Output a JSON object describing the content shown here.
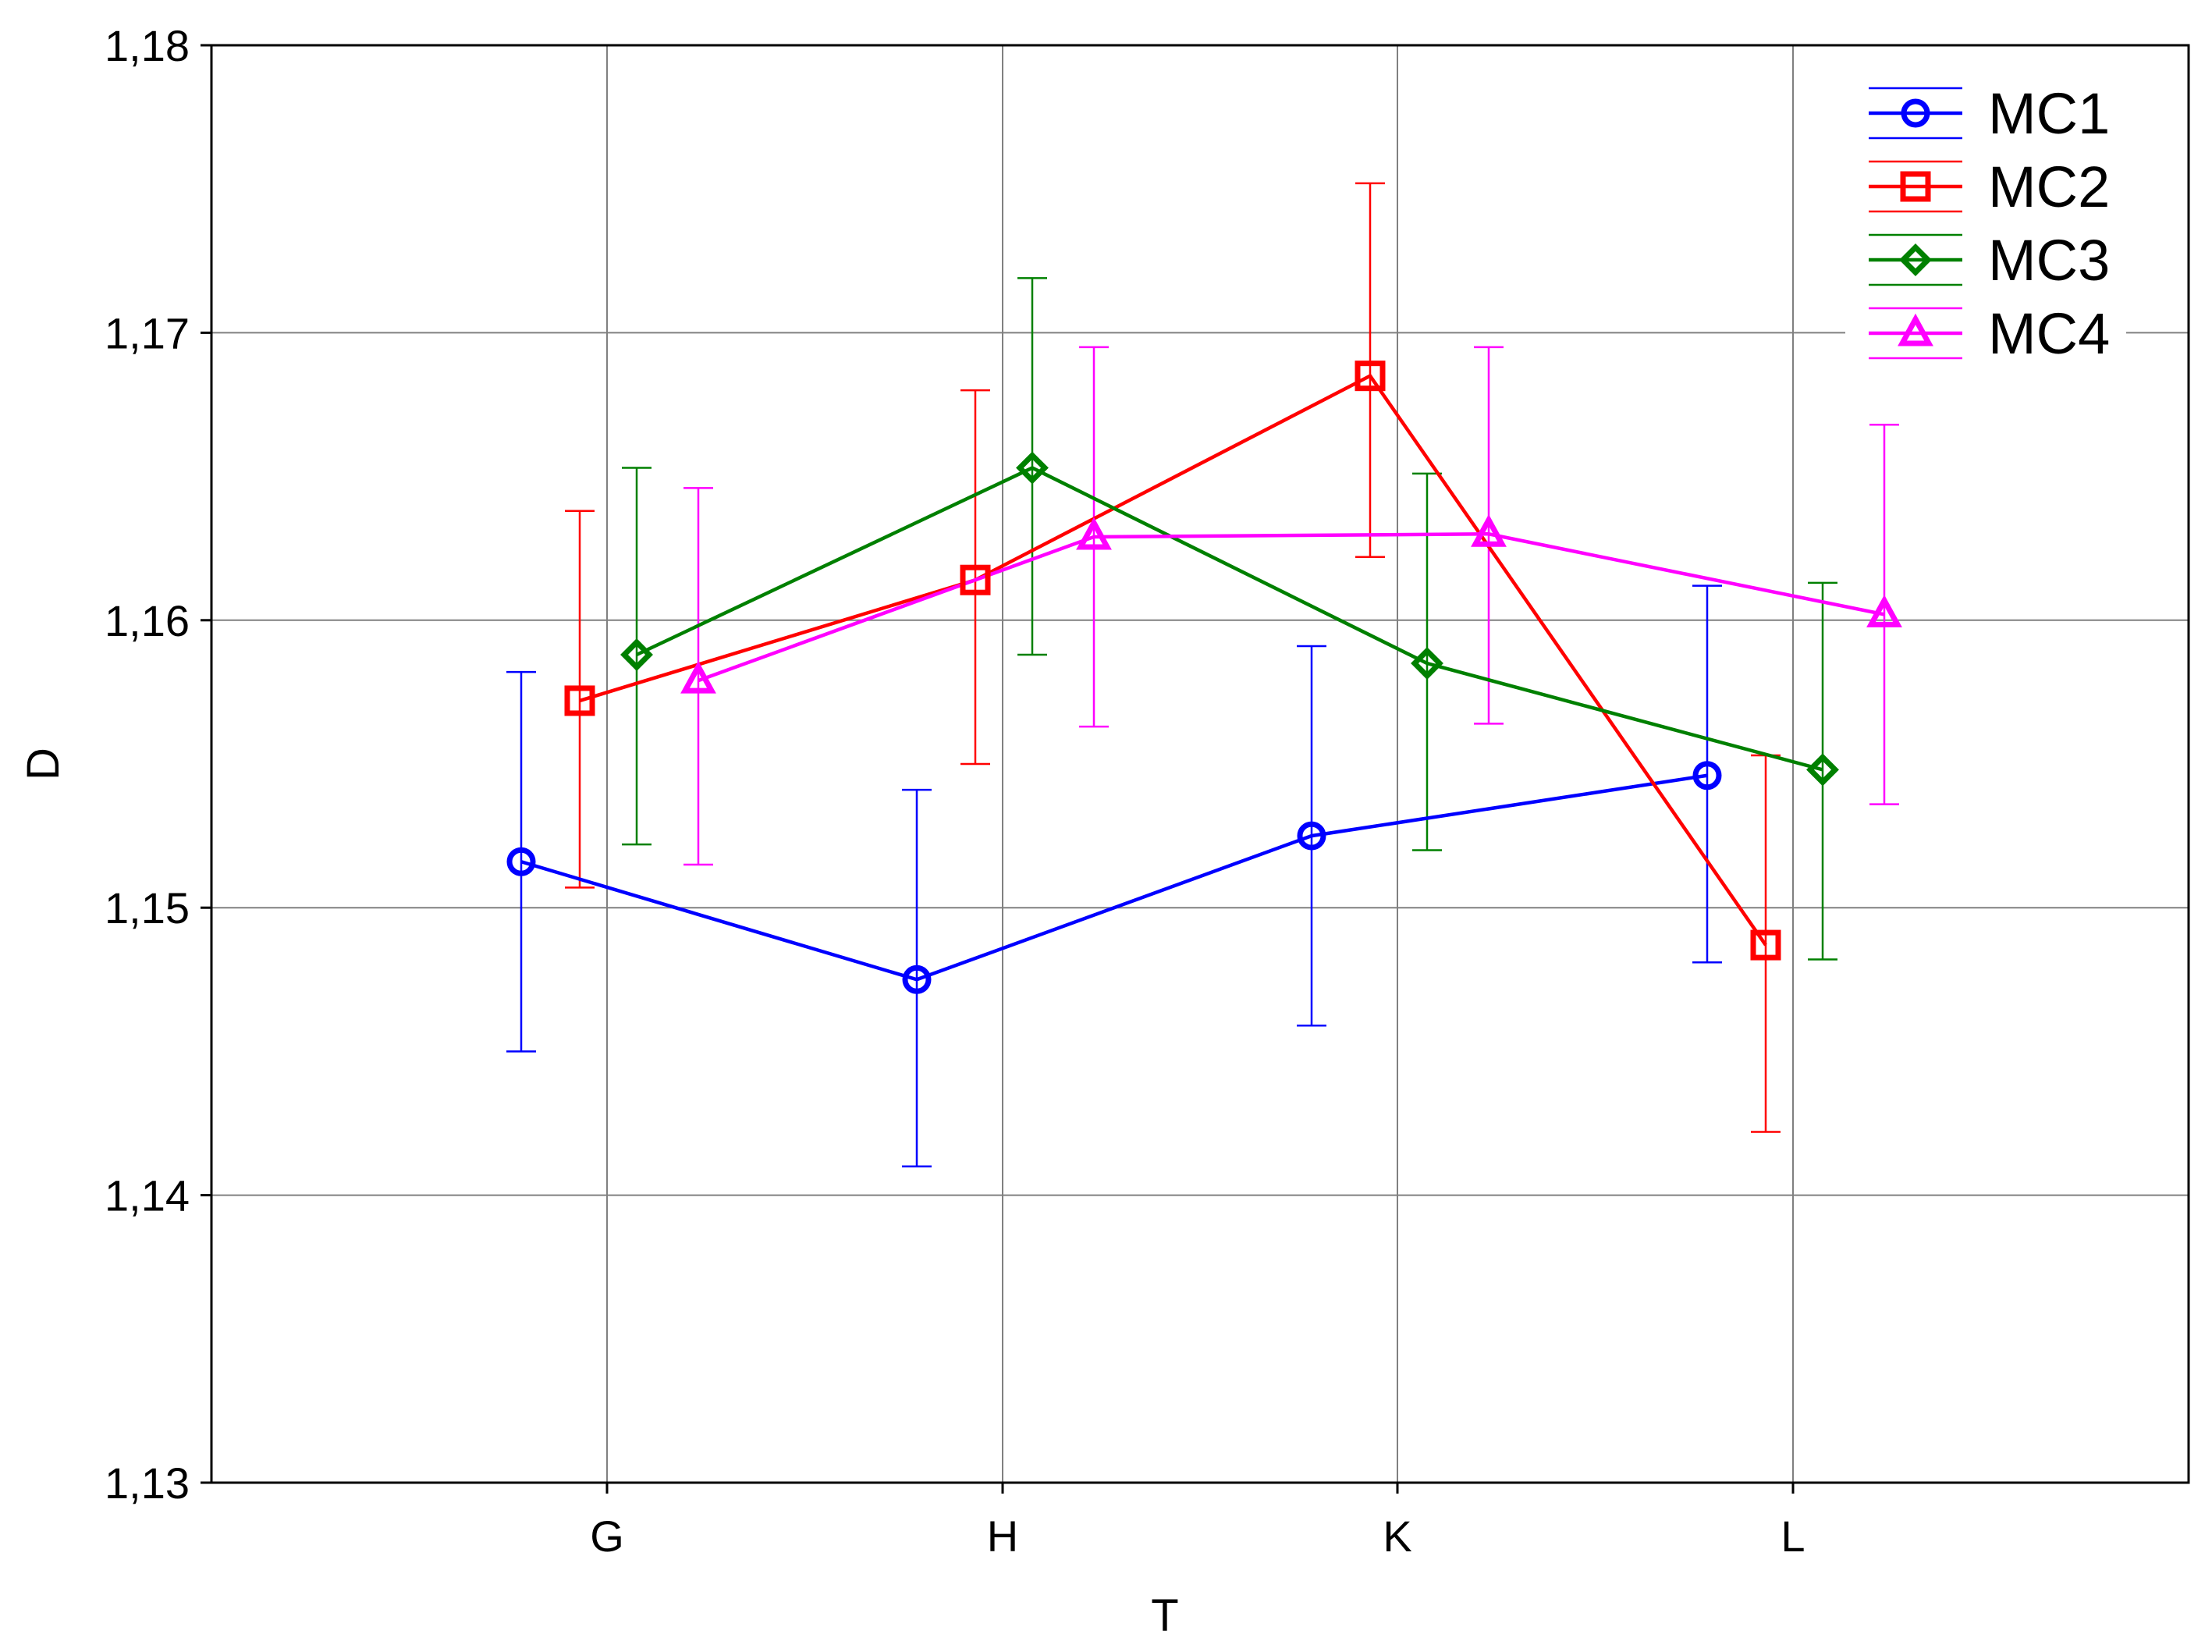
{
  "chart_data": {
    "type": "line",
    "title": "",
    "xlabel": "T",
    "ylabel": "D",
    "categories": [
      "G",
      "H",
      "K",
      "L"
    ],
    "ylim": [
      1.13,
      1.18
    ],
    "yticks": [
      1.13,
      1.14,
      1.15,
      1.16,
      1.17,
      1.18
    ],
    "ytick_labels": [
      "1,13",
      "1,14",
      "1,15",
      "1,16",
      "1,17",
      "1,18"
    ],
    "grid": true,
    "legend_position": "top-right",
    "error_bars": true,
    "series": [
      {
        "name": "MC1",
        "color": "#0000ff",
        "marker": "circle",
        "values": [
          1.1516,
          1.1475,
          1.1525,
          1.1546
        ],
        "lower": [
          1.145,
          1.141,
          1.1459,
          1.1481
        ],
        "upper": [
          1.1582,
          1.1541,
          1.1591,
          1.1612
        ]
      },
      {
        "name": "MC2",
        "color": "#ff0000",
        "marker": "square",
        "values": [
          1.1572,
          1.1614,
          1.1685,
          1.1487
        ],
        "lower": [
          1.1507,
          1.155,
          1.1622,
          1.1422
        ],
        "upper": [
          1.1638,
          1.168,
          1.1752,
          1.1553
        ]
      },
      {
        "name": "MC3",
        "color": "#008000",
        "marker": "diamond",
        "values": [
          1.1588,
          1.1653,
          1.1585,
          1.1548
        ],
        "lower": [
          1.1522,
          1.1588,
          1.152,
          1.1482
        ],
        "upper": [
          1.1653,
          1.1719,
          1.1651,
          1.1613
        ]
      },
      {
        "name": "MC4",
        "color": "#ff00ff",
        "marker": "triangle",
        "values": [
          1.1579,
          1.1629,
          1.163,
          1.1602
        ],
        "lower": [
          1.1515,
          1.1563,
          1.1564,
          1.1536
        ],
        "upper": [
          1.1646,
          1.1695,
          1.1695,
          1.1668
        ]
      }
    ]
  }
}
